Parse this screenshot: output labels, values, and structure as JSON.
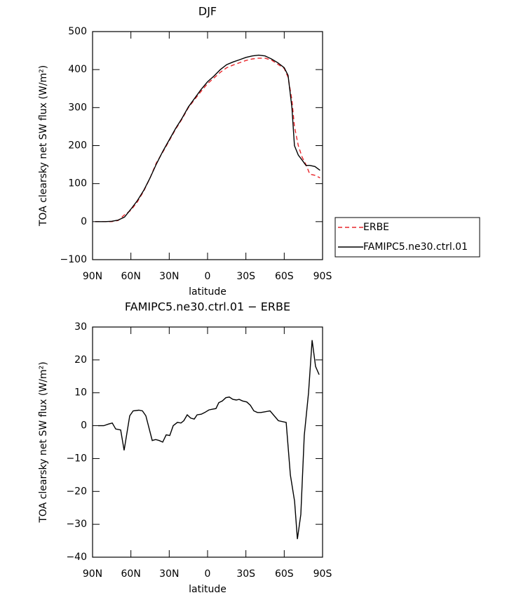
{
  "chart_data": [
    {
      "type": "line",
      "title": "DJF",
      "xlabel": "latitude",
      "ylabel": "TOA clearsky net SW flux (W/m²)",
      "x": [
        88,
        85,
        80,
        75,
        70,
        65,
        60,
        55,
        50,
        45,
        40,
        35,
        30,
        25,
        20,
        15,
        10,
        5,
        0,
        -5,
        -10,
        -15,
        -20,
        -25,
        -30,
        -35,
        -40,
        -45,
        -50,
        -55,
        -60,
        -63,
        -66,
        -68,
        -71,
        -74,
        -77,
        -80,
        -84,
        -88
      ],
      "series": [
        {
          "name": "ERBE",
          "color": "#e8262b",
          "dash": true,
          "values": [
            0,
            0,
            0,
            0,
            3,
            18,
            30,
            52,
            80,
            115,
            155,
            183,
            213,
            243,
            270,
            300,
            322,
            343,
            363,
            378,
            393,
            405,
            412,
            418,
            424,
            428,
            430,
            430,
            425,
            414,
            403,
            380,
            320,
            250,
            200,
            170,
            150,
            125,
            122,
            115
          ]
        },
        {
          "name": "FAMIPC5.ne30.ctrl.01",
          "color": "#000000",
          "dash": false,
          "values": [
            0,
            0,
            0,
            1,
            4,
            12,
            33,
            55,
            82,
            115,
            152,
            185,
            215,
            245,
            272,
            302,
            325,
            348,
            368,
            383,
            400,
            413,
            420,
            426,
            432,
            436,
            438,
            436,
            428,
            418,
            405,
            385,
            300,
            200,
            175,
            162,
            148,
            148,
            145,
            135
          ]
        }
      ],
      "xlim": [
        90,
        -90
      ],
      "xticks": [
        {
          "value": 90,
          "label": "90N"
        },
        {
          "value": 60,
          "label": "60N"
        },
        {
          "value": 30,
          "label": "30N"
        },
        0,
        {
          "value": -30,
          "label": "30S"
        },
        {
          "value": -60,
          "label": "60S"
        },
        {
          "value": -90,
          "label": "90S"
        }
      ],
      "ylim": [
        -100,
        500
      ],
      "yticks": [
        {
          "value": -100,
          "label": "−100"
        },
        0,
        100,
        200,
        300,
        400,
        500
      ],
      "legend": "right"
    },
    {
      "type": "line",
      "title": "FAMIPC5.ne30.ctrl.01 − ERBE",
      "xlabel": "latitude",
      "ylabel": "TOA clearsky net SW flux (W/m²)",
      "x": [
        85.6,
        81.2,
        77.4,
        74.6,
        71.9,
        68,
        65.3,
        60.9,
        58.2,
        53.8,
        51,
        48.3,
        43.3,
        40.6,
        37.9,
        35.1,
        32.4,
        29.6,
        26.9,
        23.6,
        20.8,
        18.6,
        15.9,
        13.2,
        10.4,
        8.2,
        4.9,
        2.2,
        -1.1,
        -3.9,
        -6.6,
        -8.8,
        -11.5,
        -14.3,
        -17,
        -19.8,
        -22.5,
        -24.7,
        -27.5,
        -30.7,
        -33.5,
        -36.2,
        -39,
        -41.7,
        -44.5,
        -48.9,
        -55.4,
        -61.5,
        -64.8,
        -68.1,
        -70.3,
        -73,
        -75.7,
        -79,
        -81.8,
        -84.5,
        -87.3
      ],
      "values": [
        0,
        0,
        0.5,
        0.8,
        -1,
        -1.3,
        -7.5,
        3,
        4.5,
        4.7,
        4.5,
        3,
        -4.5,
        -4.2,
        -4.5,
        -5,
        -2.8,
        -3,
        0,
        1,
        0.8,
        1.5,
        3.3,
        2.3,
        2,
        3.3,
        3.5,
        4,
        4.8,
        5,
        5.2,
        7,
        7.5,
        8.5,
        8.7,
        8,
        7.8,
        8,
        7.5,
        7.2,
        6.2,
        4.5,
        4,
        4,
        4.2,
        4.5,
        1.5,
        1,
        -15,
        -23,
        -34.5,
        -27,
        -3,
        10,
        26,
        18,
        15.5
      ],
      "color": "#000000",
      "xlim": [
        90,
        -90
      ],
      "xticks": [
        {
          "value": 90,
          "label": "90N"
        },
        {
          "value": 60,
          "label": "60N"
        },
        {
          "value": 30,
          "label": "30N"
        },
        0,
        {
          "value": -30,
          "label": "30S"
        },
        {
          "value": -60,
          "label": "60S"
        },
        {
          "value": -90,
          "label": "90S"
        }
      ],
      "ylim": [
        -40,
        30
      ],
      "yticks": [
        {
          "value": -40,
          "label": "−40"
        },
        {
          "value": -30,
          "label": "−30"
        },
        {
          "value": -20,
          "label": "−20"
        },
        {
          "value": -10,
          "label": "−10"
        },
        0,
        10,
        20,
        30
      ]
    }
  ]
}
